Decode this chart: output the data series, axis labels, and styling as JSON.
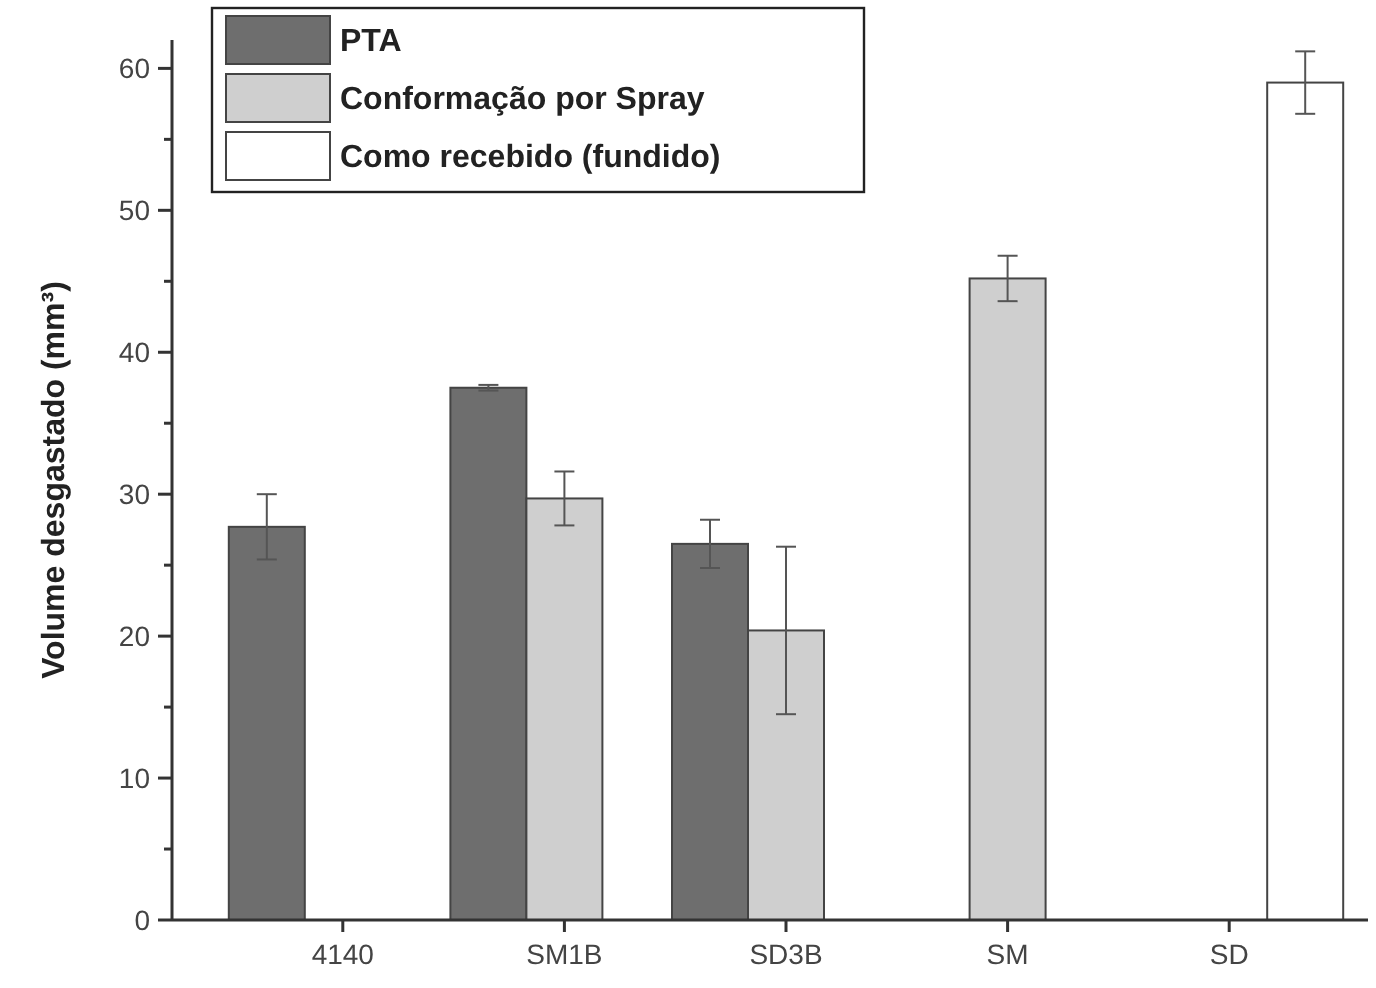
{
  "chart_data": {
    "type": "bar",
    "ylabel": "Volume desgastado (mm³)",
    "categories": [
      "4140",
      "SM1B",
      "SD3B",
      "SM",
      "SD"
    ],
    "series": [
      {
        "name": "PTA",
        "color": "#6e6e6e",
        "values": [
          27.7,
          37.5,
          26.5,
          null,
          null
        ],
        "errors": [
          2.3,
          0.2,
          1.7,
          null,
          null
        ]
      },
      {
        "name": "Conformação por Spray",
        "color": "#cfcfcf",
        "values": [
          null,
          29.7,
          20.4,
          45.2,
          null
        ],
        "errors": [
          null,
          1.9,
          5.9,
          1.6,
          null
        ]
      },
      {
        "name": "Como recebido (fundido)",
        "color": "#ffffff",
        "values": [
          null,
          null,
          null,
          null,
          59
        ],
        "errors": [
          null,
          null,
          null,
          null,
          2.2
        ]
      }
    ],
    "ylim": [
      0,
      62
    ],
    "yticks": [
      0,
      10,
      20,
      30,
      40,
      50,
      60
    ],
    "grid": false,
    "legend": "top left"
  }
}
